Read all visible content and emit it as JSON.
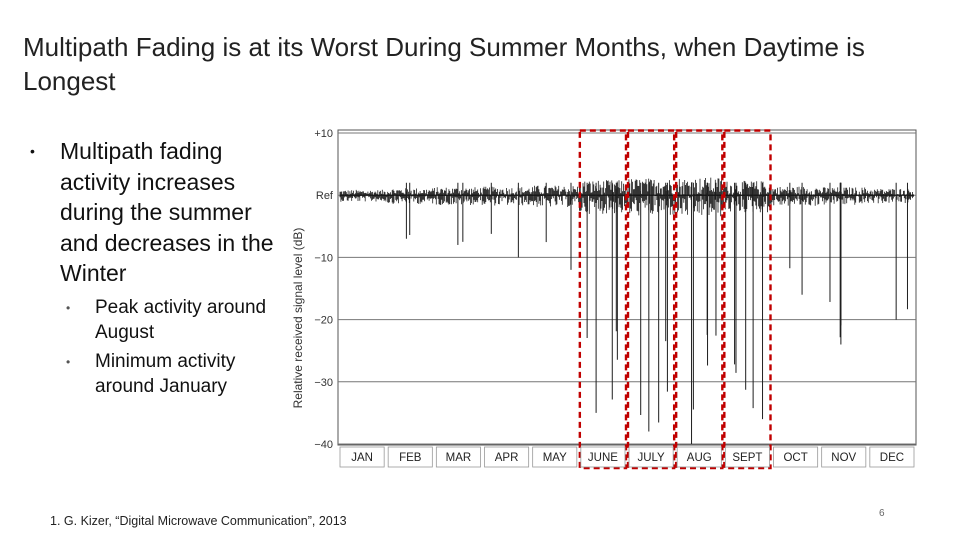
{
  "title": "Multipath Fading is at its Worst During Summer Months, when Daytime is Longest",
  "bullets": {
    "main": "Multipath fading activity increases during the summer and decreases in the Winter",
    "subs": [
      "Peak activity around August",
      "Minimum activity around January"
    ]
  },
  "chart_data": {
    "type": "line",
    "ylabel": "Relative received signal level (dB)",
    "y_ticks": [
      "+10",
      "Ref",
      "−10",
      "−20",
      "−30",
      "−40"
    ],
    "ylim": [
      -40,
      10
    ],
    "categories": [
      "JAN",
      "FEB",
      "MAR",
      "APR",
      "MAY",
      "JUNE",
      "JULY",
      "AUG",
      "SEPT",
      "OCT",
      "NOV",
      "DEC"
    ],
    "highlighted_months": [
      "JUNE",
      "JULY",
      "AUG",
      "SEPT"
    ],
    "highlight_color": "#c00000",
    "grid": true,
    "deep_fades": [
      {
        "month": "FEB",
        "min_db": -7
      },
      {
        "month": "MAR",
        "min_db": -8
      },
      {
        "month": "APR",
        "min_db": -10
      },
      {
        "month": "MAY",
        "min_db": -12
      },
      {
        "month": "JUNE",
        "min_db": -35
      },
      {
        "month": "JULY",
        "min_db": -38
      },
      {
        "month": "AUG",
        "min_db": -40
      },
      {
        "month": "SEPT",
        "min_db": -36
      },
      {
        "month": "OCT",
        "min_db": -16
      },
      {
        "month": "NOV",
        "min_db": -24
      },
      {
        "month": "DEC",
        "min_db": -20
      }
    ]
  },
  "footer": "1. G. Kizer, “Digital Microwave Communication”, 2013",
  "page_number": "6"
}
